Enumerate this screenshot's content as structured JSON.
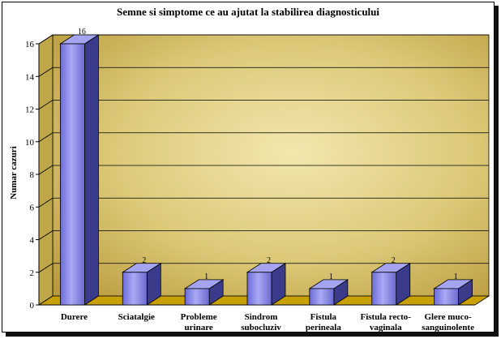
{
  "chart_data": {
    "type": "bar",
    "title": "Semne si simptome ce au ajutat la stabilirea diagnosticului",
    "ylabel": "Numar cazuri",
    "xlabel": "",
    "ylim": [
      0,
      16
    ],
    "yticks": [
      0,
      2,
      4,
      6,
      8,
      10,
      12,
      14,
      16
    ],
    "grid": true,
    "categories": [
      [
        "Durere"
      ],
      [
        "Sciatalgie"
      ],
      [
        "Probleme",
        "urinare"
      ],
      [
        "Sindrom",
        "subocluziv"
      ],
      [
        "Fistula",
        "perineala"
      ],
      [
        "Fistula recto-",
        "vaginala"
      ],
      [
        "Glere muco-",
        "sanguinolente"
      ]
    ],
    "values": [
      16,
      2,
      1,
      2,
      1,
      2,
      1
    ],
    "data_labels": [
      "16",
      "2",
      "1",
      "2",
      "1",
      "2",
      "1"
    ],
    "colors": {
      "bar_front": "#8484e6",
      "bar_side": "#3b3b8c",
      "bar_top": "#a4a4f0",
      "wall": "#d8c46c",
      "floor": "#c8a000"
    }
  }
}
